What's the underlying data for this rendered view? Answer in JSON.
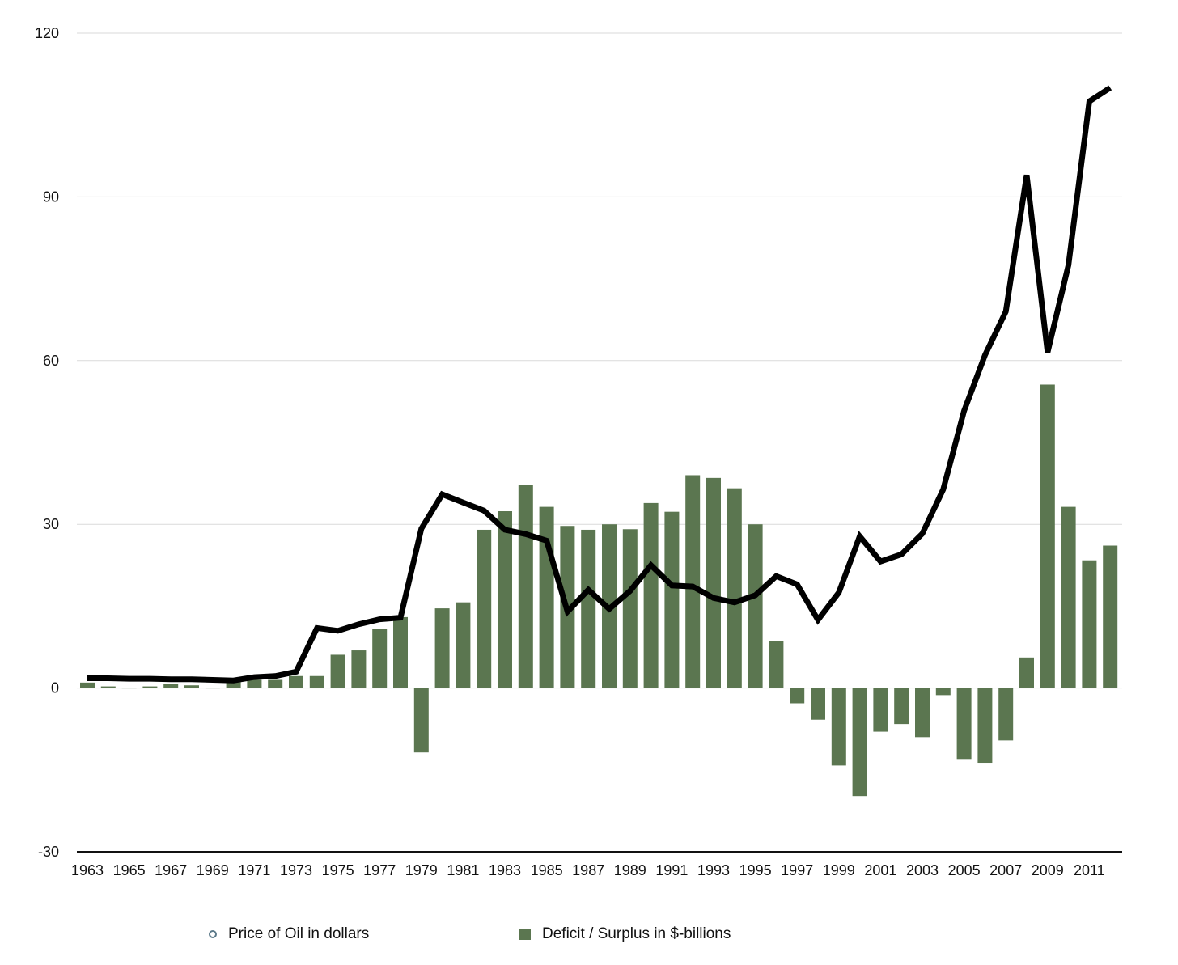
{
  "chart_data": {
    "type": "bar",
    "title": "",
    "xlabel": "",
    "ylabel": "",
    "ylim": [
      -30,
      120
    ],
    "yticks": [
      120,
      90,
      60,
      30,
      0,
      -30
    ],
    "x_tick_labels": [
      "1963",
      "1965",
      "1967",
      "1969",
      "1971",
      "1973",
      "1975",
      "1977",
      "1979",
      "1981",
      "1983",
      "1985",
      "1987",
      "1989",
      "1991",
      "1993",
      "1995",
      "1997",
      "1999",
      "2001",
      "2003",
      "2005",
      "2007",
      "2009",
      "2011"
    ],
    "categories": [
      "1963",
      "1964",
      "1965",
      "1966",
      "1967",
      "1968",
      "1969",
      "1970",
      "1971",
      "1972",
      "1973",
      "1974",
      "1975",
      "1976",
      "1977",
      "1978",
      "1979",
      "1980",
      "1981",
      "1982",
      "1983",
      "1984",
      "1985",
      "1986",
      "1987",
      "1988",
      "1989",
      "1990",
      "1991",
      "1992",
      "1993",
      "1994",
      "1995",
      "1996",
      "1997",
      "1998",
      "1999",
      "2000",
      "2001",
      "2002",
      "2003",
      "2004",
      "2005",
      "2006",
      "2007",
      "2008",
      "2009",
      "2010",
      "2011",
      "2012"
    ],
    "grid": true,
    "legend_position": "bottom",
    "series": [
      {
        "name": "Price of Oil in dollars",
        "type": "line",
        "color": "#000000",
        "values": [
          1.8,
          1.8,
          1.7,
          1.7,
          1.6,
          1.6,
          1.5,
          1.4,
          2.0,
          2.2,
          3.0,
          11.0,
          10.5,
          11.7,
          12.6,
          12.9,
          29.2,
          35.5,
          34.0,
          32.5,
          29.0,
          28.2,
          27.0,
          14.0,
          18.0,
          14.5,
          17.8,
          22.5,
          18.8,
          18.6,
          16.5,
          15.7,
          17.0,
          20.5,
          19.0,
          12.5,
          17.5,
          27.8,
          23.2,
          24.5,
          28.3,
          36.4,
          50.8,
          61.0,
          69.0,
          94.0,
          61.5,
          77.5,
          107.5,
          110.0
        ]
      },
      {
        "name": "Deficit / Surplus in $-billions",
        "type": "bar",
        "color": "#5b7650",
        "values": [
          1.0,
          0.3,
          0.0,
          0.3,
          0.8,
          0.5,
          0.0,
          1.2,
          1.5,
          1.5,
          2.2,
          2.2,
          6.1,
          6.9,
          10.8,
          13.0,
          -11.8,
          14.6,
          15.7,
          29.0,
          32.4,
          37.2,
          33.2,
          29.7,
          29.0,
          30.0,
          29.1,
          33.9,
          32.3,
          39.0,
          38.5,
          36.6,
          30.0,
          8.6,
          -2.8,
          -5.8,
          -14.2,
          -19.8,
          -8.0,
          -6.6,
          -9.0,
          -1.3,
          -13.0,
          -13.7,
          -9.6,
          5.6,
          55.6,
          33.2,
          23.4,
          26.1
        ]
      }
    ]
  },
  "legend": {
    "line_label": "Price of Oil in dollars",
    "bar_label": "Deficit / Surplus in $-billions",
    "line_marker_color": "#5c7a8a",
    "bar_color": "#5b7650"
  }
}
